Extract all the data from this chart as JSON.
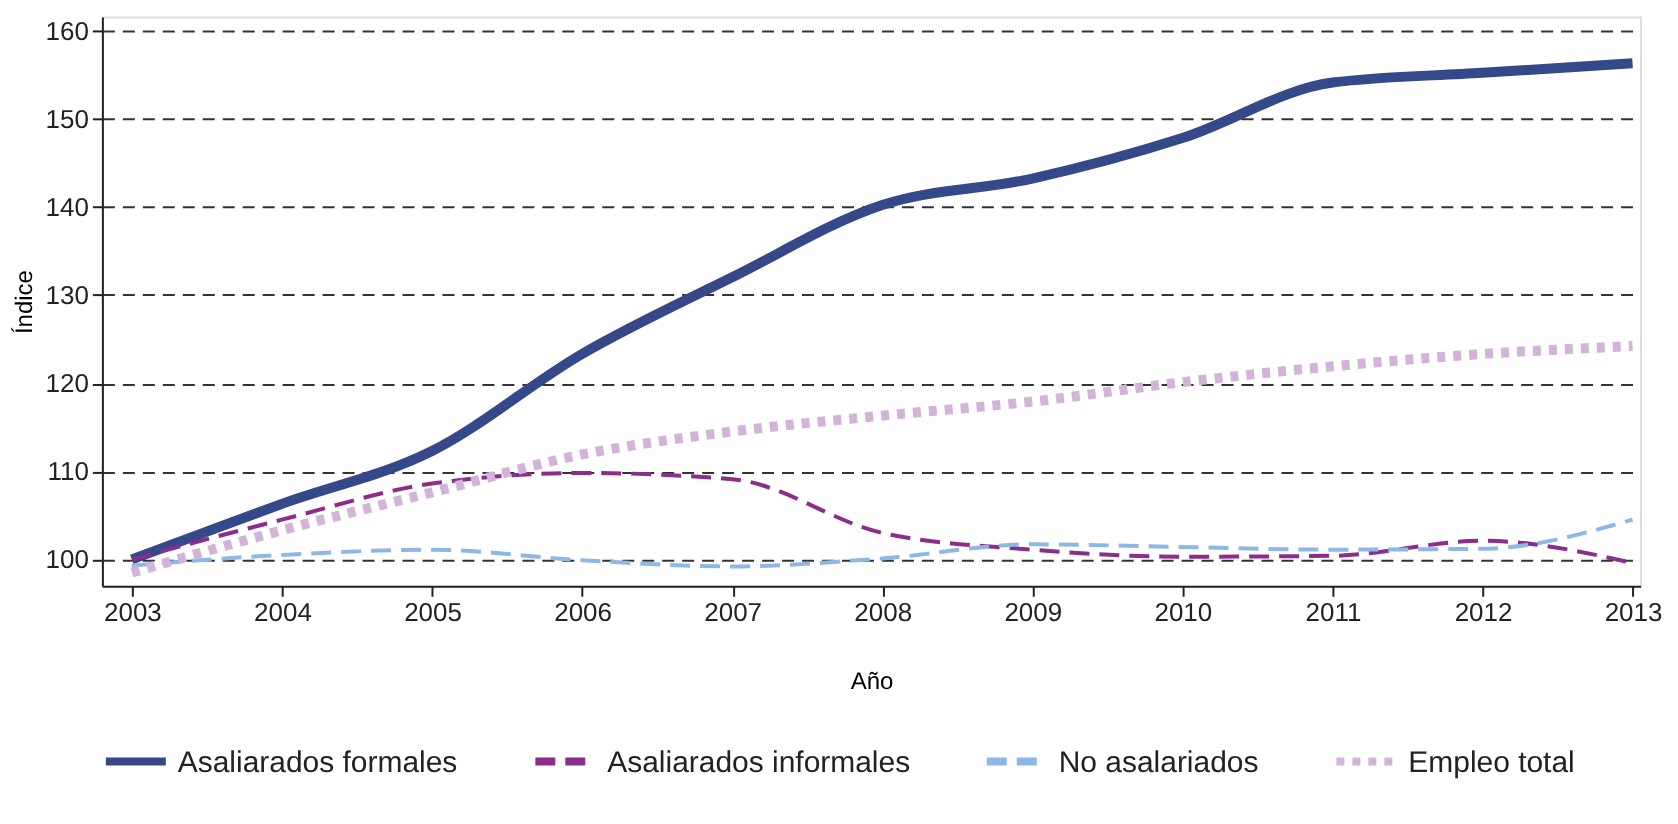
{
  "chart_data": {
    "type": "line",
    "xlabel": "Año",
    "ylabel": "Índice",
    "x": [
      2003,
      2004,
      2005,
      2006,
      2007,
      2008,
      2009,
      2010,
      2011,
      2012,
      2013
    ],
    "xlim": [
      2002.8,
      2013.05
    ],
    "xticks": [
      2003,
      2004,
      2005,
      2006,
      2007,
      2008,
      2009,
      2010,
      2011,
      2012,
      2013
    ],
    "ylim": [
      97,
      161.6
    ],
    "yticks": [
      100,
      110,
      120,
      130,
      140,
      150,
      160
    ],
    "grid": "y",
    "legend": "bottom",
    "series": [
      {
        "name": "Asaliarados formales",
        "color": "#34488a",
        "line_style": "solid",
        "values": [
          100,
          106.3,
          112.3,
          123.3,
          132,
          140.2,
          143.2,
          147.8,
          154.1,
          155.2,
          156.3
        ]
      },
      {
        "name": "Asaliarados informales",
        "color": "#8c2d8c",
        "line_style": "dashed",
        "values": [
          100,
          104.5,
          108.6,
          109.8,
          109.1,
          103,
          101.1,
          100.3,
          100.4,
          102.1,
          99.6
        ]
      },
      {
        "name": "No asalariados",
        "color": "#8db8e6",
        "line_style": "dashed",
        "values": [
          99.3,
          100.5,
          101.1,
          99.9,
          99.2,
          100.1,
          101.7,
          101.4,
          101.1,
          101.2,
          104.5
        ]
      },
      {
        "name": "Empleo total",
        "color": "#d3b3d8",
        "line_style": "dotted",
        "values": [
          98.5,
          103.3,
          107.6,
          111.9,
          114.5,
          116.3,
          117.9,
          120.1,
          121.9,
          123.3,
          124.2
        ]
      }
    ]
  }
}
